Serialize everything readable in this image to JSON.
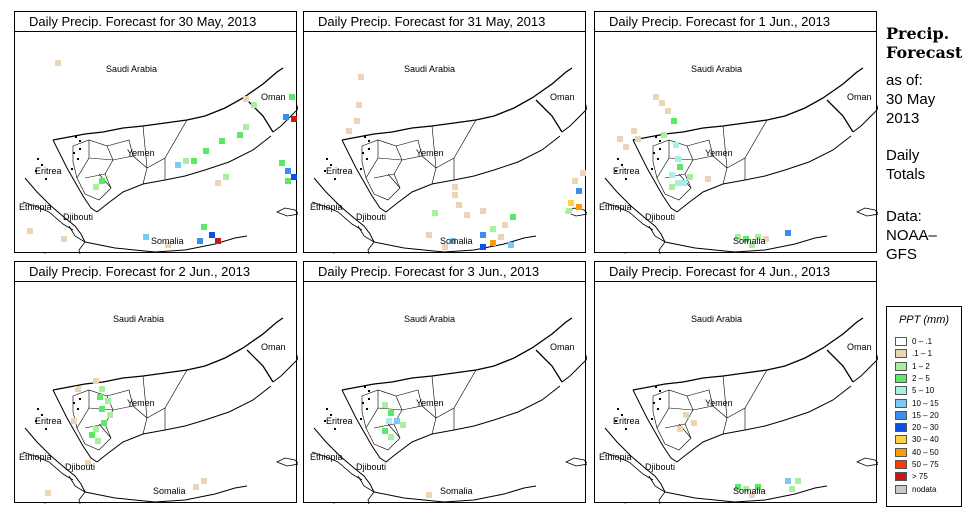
{
  "panels": [
    {
      "title": "Daily Precip. Forecast for  30 May, 2013"
    },
    {
      "title": "Daily Precip. Forecast for  31 May, 2013"
    },
    {
      "title": "Daily Precip. Forecast for  1 Jun., 2013"
    },
    {
      "title": "Daily Precip. Forecast for  2 Jun., 2013"
    },
    {
      "title": "Daily Precip. Forecast for  3 Jun., 2013"
    },
    {
      "title": "Daily Precip. Forecast for  4 Jun., 2013"
    }
  ],
  "map_labels": {
    "saudi": "Saudi Arabia",
    "oman": "Oman",
    "yemen": "Yemen",
    "eritrea": "Eritrea",
    "ethiopia": "Ethiopia",
    "djibouti": "Djibouti",
    "somalia": "Somalia"
  },
  "side": {
    "title_line1": "Precip.",
    "title_line2": "Forecast",
    "asof": "as of:",
    "date_line1": "30 May",
    "date_line2": "2013",
    "daily_line1": "Daily",
    "daily_line2": "Totals",
    "data_line1": "Data:",
    "data_line2": "NOAA–",
    "data_line3": "GFS"
  },
  "legend": {
    "title": "PPT (mm)",
    "items": [
      {
        "label": "0 – .1",
        "color": "#ffffff"
      },
      {
        "label": ".1 – 1",
        "color": "#ecd5b2"
      },
      {
        "label": "1 – 2",
        "color": "#a8f0a0"
      },
      {
        "label": "2 – 5",
        "color": "#5ee86a"
      },
      {
        "label": "5 – 10",
        "color": "#a6f0e4"
      },
      {
        "label": "10 – 15",
        "color": "#7ec8f8"
      },
      {
        "label": "15 – 20",
        "color": "#3a8ef0"
      },
      {
        "label": "20 – 30",
        "color": "#1050e0"
      },
      {
        "label": "30 – 40",
        "color": "#ffd040"
      },
      {
        "label": "40 – 50",
        "color": "#ff9a00"
      },
      {
        "label": "50 – 75",
        "color": "#ff3a00"
      },
      {
        "label": "> 75",
        "color": "#c81818"
      },
      {
        "label": "nodata",
        "color": "#c8c8c8"
      }
    ]
  }
}
